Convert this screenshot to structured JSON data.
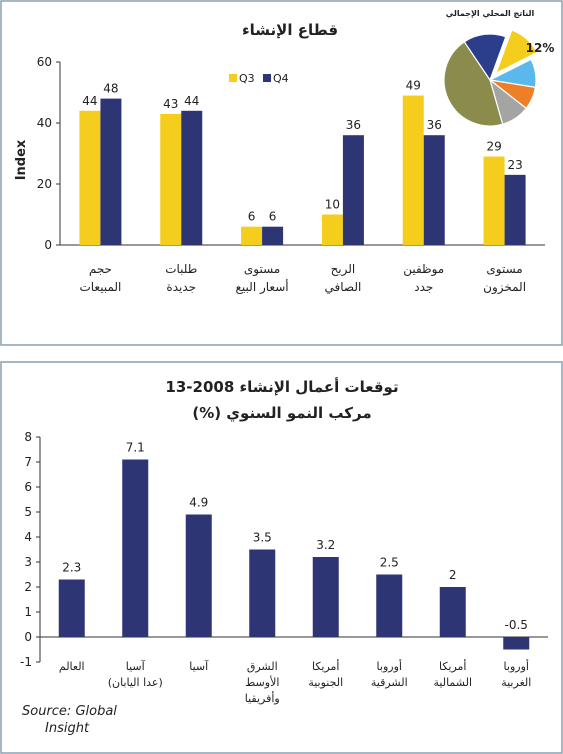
{
  "chart_data": [
    {
      "type": "bar",
      "title": "قطاع الإنشاء",
      "ylabel": "Index",
      "ylim": [
        0,
        60
      ],
      "yticks": [
        "0",
        "20",
        "40",
        "60"
      ],
      "categories": [
        [
          "حجم",
          "المبيعات"
        ],
        [
          "طلبات",
          "جديدة"
        ],
        [
          "مستوى",
          "أسعار البيع"
        ],
        [
          "الربح",
          "الصافي"
        ],
        [
          "موظفين",
          "جدد"
        ],
        [
          "مستوى",
          "المخزون"
        ]
      ],
      "series": [
        {
          "name": "Q3",
          "color": "#f5cd1c",
          "values": [
            44,
            43,
            6,
            10,
            49,
            29
          ]
        },
        {
          "name": "Q4",
          "color": "#2e3575",
          "values": [
            48,
            44,
            6,
            36,
            36,
            23
          ]
        }
      ],
      "data_labels": [
        [
          "44",
          "48"
        ],
        [
          "43",
          "44"
        ],
        [
          "6",
          "6"
        ],
        [
          "",
          "36"
        ],
        [
          "49",
          "36"
        ],
        [
          "29",
          "23"
        ]
      ],
      "data_labels_q3_alt": [
        "",
        "",
        "",
        "10",
        "",
        ""
      ],
      "legend": "top",
      "grid": false
    },
    {
      "type": "pie",
      "title": "الناتج المحلي الإجمالي",
      "slices": [
        {
          "value": 12,
          "label": "12%",
          "color": "#f5cd1c",
          "exploded": true
        },
        {
          "value": 10,
          "label": "",
          "color": "#5bb8ec"
        },
        {
          "value": 8,
          "label": "",
          "color": "#ee7f26"
        },
        {
          "value": 10,
          "label": "",
          "color": "#a4a4a4"
        },
        {
          "value": 45,
          "label": "",
          "color": "#8b8b4b"
        },
        {
          "value": 15,
          "label": "",
          "color": "#2b3e8c"
        }
      ]
    },
    {
      "type": "bar",
      "title": "توقعات أعمال الإنشاء  2008-13",
      "subtitle": "مركب النمو السنوي (%)",
      "ylim": [
        -1,
        8
      ],
      "yticks": [
        "-1",
        "0",
        "1",
        "2",
        "3",
        "4",
        "5",
        "6",
        "7",
        "8"
      ],
      "categories": [
        [
          "العالم"
        ],
        [
          "آسيا",
          "(عدا اليابان)"
        ],
        [
          "آسيا"
        ],
        [
          "الشرق",
          "الأوسط",
          "وأفريقيا"
        ],
        [
          "أمريكا",
          "الجنوبية"
        ],
        [
          "أوروبا",
          "الشرقية"
        ],
        [
          "أمريكا",
          "الشمالية"
        ],
        [
          "أوروبا",
          "الغربية"
        ]
      ],
      "values": [
        2.3,
        7.1,
        4.9,
        3.5,
        3.2,
        2.5,
        2,
        -0.5
      ],
      "value_labels": [
        "2.3",
        "7.1",
        "4.9",
        "3.5",
        "3.2",
        "2.5",
        "2",
        "-0.5"
      ],
      "color": "#2e3575",
      "source": [
        "Source: Global",
        "Insight"
      ],
      "grid": false
    }
  ]
}
